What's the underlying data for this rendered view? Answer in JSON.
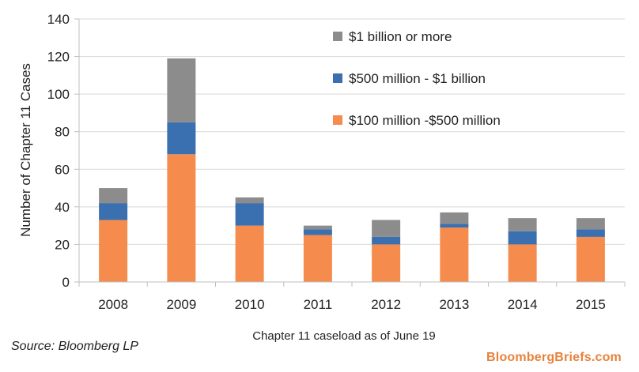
{
  "chart_data": {
    "type": "bar",
    "stacked": true,
    "categories": [
      "2008",
      "2009",
      "2010",
      "2011",
      "2012",
      "2013",
      "2014",
      "2015"
    ],
    "series": [
      {
        "name": "$100 million -$500 million",
        "color": "#f58b4c",
        "values": [
          33,
          68,
          30,
          25,
          20,
          29,
          20,
          24
        ]
      },
      {
        "name": "$500 million - $1 billion",
        "color": "#3a6fb0",
        "values": [
          9,
          17,
          12,
          3,
          4,
          2,
          7,
          4
        ]
      },
      {
        "name": "$1 billion or more",
        "color": "#8c8c8c",
        "values": [
          8,
          34,
          3,
          2,
          9,
          6,
          7,
          6
        ]
      }
    ],
    "ylabel": "Number of Chapter 11 Cases",
    "xlabel": "Chapter 11 caseload as of June 19",
    "ylim": [
      0,
      140
    ],
    "yticks": [
      0,
      20,
      40,
      60,
      80,
      100,
      120,
      140
    ],
    "grid": true,
    "legend": "top-right"
  },
  "footer": {
    "source": "Source: Bloomberg LP",
    "brand": "BloombergBriefs.com"
  }
}
